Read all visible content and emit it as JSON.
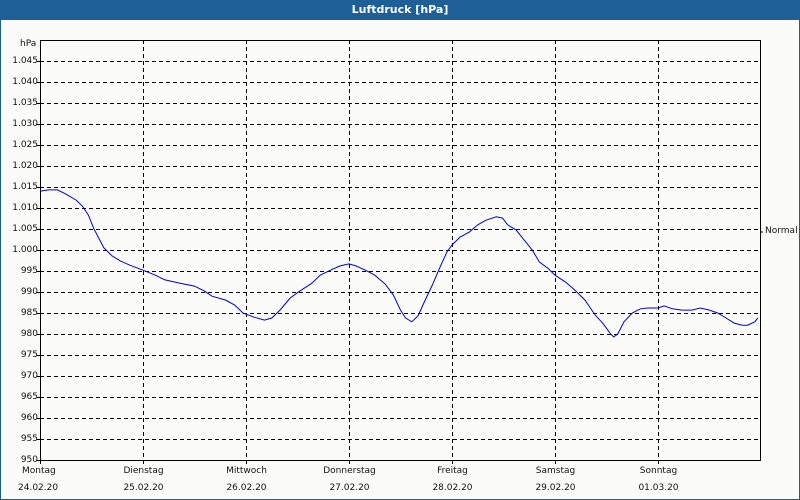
{
  "window": {
    "title": "Luftdruck [hPa]"
  },
  "chart_data": {
    "type": "line",
    "title": "Luftdruck [hPa]",
    "xlabel": "",
    "ylabel": "hPa",
    "ylim": [
      950,
      1050
    ],
    "y_ticks": [
      "950",
      "955",
      "960",
      "965",
      "970",
      "975",
      "980",
      "985",
      "990",
      "995",
      "1.000",
      "1.005",
      "1.010",
      "1.015",
      "1.020",
      "1.025",
      "1.030",
      "1.035",
      "1.040",
      "1.045"
    ],
    "x_ticks": [
      {
        "day": "Montag",
        "date": "24.02.20"
      },
      {
        "day": "Dienstag",
        "date": "25.02.20"
      },
      {
        "day": "Mittwoch",
        "date": "26.02.20"
      },
      {
        "day": "Donnerstag",
        "date": "27.02.20"
      },
      {
        "day": "Freitag",
        "date": "28.02.20"
      },
      {
        "day": "Samstag",
        "date": "29.02.20"
      },
      {
        "day": "Sonntag",
        "date": "01.03.20"
      }
    ],
    "grid": true,
    "annotation": "Normal",
    "line_color": "#0000c8",
    "series": [
      {
        "name": "Luftdruck",
        "x_days": [
          0.0,
          0.08,
          0.17,
          0.25,
          0.35,
          0.41,
          0.47,
          0.52,
          0.58,
          0.62,
          0.7,
          0.78,
          0.87,
          1.0,
          1.12,
          1.21,
          1.36,
          1.5,
          1.6,
          1.67,
          1.8,
          1.89,
          1.97,
          2.08,
          2.18,
          2.25,
          2.33,
          2.43,
          2.52,
          2.64,
          2.72,
          2.82,
          2.91,
          3.0,
          3.07,
          3.16,
          3.25,
          3.35,
          3.43,
          3.5,
          3.55,
          3.61,
          3.67,
          3.74,
          3.81,
          3.88,
          3.95,
          4.0,
          4.08,
          4.17,
          4.25,
          4.33,
          4.43,
          4.49,
          4.54,
          4.62,
          4.7,
          4.78,
          4.85,
          4.93,
          5.0,
          5.1,
          5.19,
          5.29,
          5.39,
          5.47,
          5.54,
          5.57,
          5.61,
          5.67,
          5.75,
          5.83,
          5.9,
          6.0,
          6.06,
          6.14,
          6.23,
          6.33,
          6.41,
          6.5,
          6.58,
          6.66,
          6.74,
          6.82,
          6.87,
          6.94,
          6.97
        ],
        "values": [
          1014.0,
          1014.3,
          1014.3,
          1013.3,
          1011.9,
          1010.5,
          1008.3,
          1005.2,
          1002.4,
          1000.5,
          998.6,
          997.4,
          996.4,
          995.2,
          994.0,
          992.9,
          992.1,
          991.4,
          990.2,
          989.0,
          988.1,
          986.9,
          985.0,
          984.0,
          983.3,
          983.8,
          985.7,
          988.6,
          990.2,
          992.1,
          994.0,
          995.2,
          996.2,
          996.7,
          996.2,
          995.2,
          994.0,
          991.9,
          989.3,
          985.7,
          983.8,
          982.9,
          984.3,
          988.1,
          991.7,
          995.7,
          999.5,
          1001.2,
          1003.1,
          1004.3,
          1006.0,
          1007.1,
          1007.9,
          1007.6,
          1006.0,
          1004.8,
          1002.4,
          1000.0,
          997.1,
          995.7,
          994.0,
          992.4,
          990.5,
          988.1,
          984.5,
          982.4,
          980.0,
          979.3,
          980.0,
          982.9,
          985.0,
          986.0,
          986.2,
          986.2,
          986.7,
          986.0,
          985.7,
          985.7,
          986.2,
          985.7,
          985.0,
          983.8,
          982.6,
          982.1,
          982.1,
          982.9,
          983.8
        ]
      }
    ]
  }
}
